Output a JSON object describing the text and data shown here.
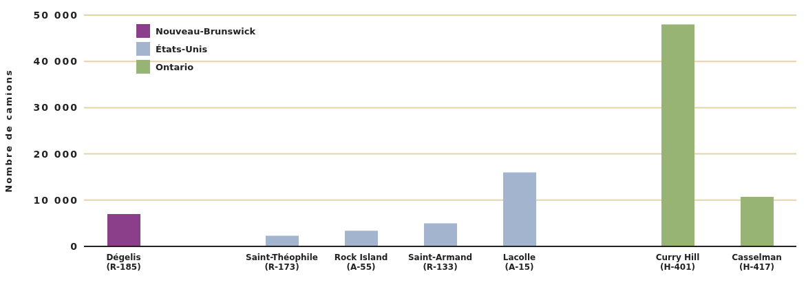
{
  "chart_data": {
    "type": "bar",
    "ylabel": "Nombre de camions",
    "stacked": true,
    "categories": [
      "Dégelis\n(R-185)",
      null,
      "Saint-Théophile\n(R-173)",
      "Rock Island\n(A-55)",
      "Saint-Armand\n(R-133)",
      "Lacolle\n(A-15)",
      null,
      "Curry Hill\n(H-401)",
      "Casselman\n(H-417)"
    ],
    "series": [
      {
        "name": "Nouveau-Brunswick",
        "color": "#8b3f8a",
        "values": [
          7000,
          null,
          null,
          null,
          null,
          null,
          null,
          null,
          null
        ]
      },
      {
        "name": "États-Unis",
        "color": "#a3b4cf",
        "values": [
          null,
          null,
          2300,
          3400,
          5000,
          16000,
          null,
          null,
          null
        ]
      },
      {
        "name": "Ontario",
        "color": "#98b474",
        "values": [
          null,
          null,
          null,
          null,
          null,
          null,
          null,
          48000,
          10700
        ]
      }
    ],
    "ylim": [
      0,
      50000
    ],
    "yticks": [
      0,
      {
        "value": 10000,
        "label": "10 000"
      },
      {
        "value": 20000,
        "label": "20 000"
      },
      {
        "value": 30000,
        "label": "30 000"
      },
      {
        "value": 40000,
        "label": "40 000"
      },
      {
        "value": 50000,
        "label": "50 000"
      }
    ],
    "grid": "y",
    "legend": "top left"
  }
}
